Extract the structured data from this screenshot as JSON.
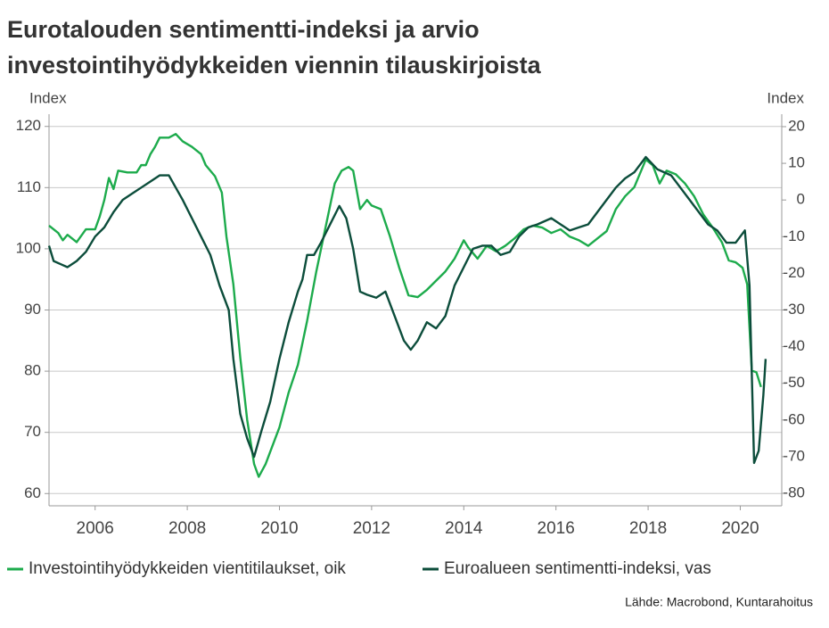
{
  "chart_data": {
    "type": "line",
    "title": [
      "Eurotalouden sentimentti-indeksi ja arvio",
      "investointihyödykkeiden viennin tilauskirjoista"
    ],
    "ylabel": "Index",
    "y2label": "Index",
    "source": "Lähde: Macrobond, Kuntarahoitus",
    "xlim": [
      2005,
      2020.9
    ],
    "xticks": [
      2006,
      2008,
      2010,
      2012,
      2014,
      2016,
      2018,
      2020
    ],
    "ylim": [
      58,
      122
    ],
    "yticks": [
      60,
      70,
      80,
      90,
      100,
      110,
      120
    ],
    "y2lim": [
      -83.4,
      23.4
    ],
    "y2ticks": [
      -80,
      -70,
      -60,
      -50,
      -40,
      -30,
      -20,
      -10,
      0,
      10,
      20
    ],
    "grid": true,
    "legend": "bottom",
    "series": [
      {
        "name": "Investointihyödykkeiden vientitilaukset, oik",
        "color": "#1dab4c",
        "axis": "y2",
        "x": [
          2005.0,
          2005.2,
          2005.3,
          2005.4,
          2005.6,
          2005.8,
          2006.0,
          2006.1,
          2006.2,
          2006.3,
          2006.4,
          2006.5,
          2006.7,
          2006.9,
          2007.0,
          2007.1,
          2007.2,
          2007.3,
          2007.4,
          2007.6,
          2007.75,
          2007.9,
          2008.1,
          2008.3,
          2008.4,
          2008.6,
          2008.75,
          2008.85,
          2009.0,
          2009.15,
          2009.3,
          2009.45,
          2009.55,
          2009.7,
          2009.85,
          2010.0,
          2010.2,
          2010.4,
          2010.6,
          2010.8,
          2011.0,
          2011.2,
          2011.35,
          2011.5,
          2011.6,
          2011.75,
          2011.9,
          2012.0,
          2012.2,
          2012.4,
          2012.6,
          2012.8,
          2013.0,
          2013.2,
          2013.4,
          2013.6,
          2013.8,
          2014.0,
          2014.1,
          2014.3,
          2014.5,
          2014.7,
          2014.9,
          2015.1,
          2015.3,
          2015.5,
          2015.7,
          2015.9,
          2016.1,
          2016.3,
          2016.5,
          2016.7,
          2016.9,
          2017.1,
          2017.3,
          2017.5,
          2017.7,
          2017.95,
          2018.1,
          2018.25,
          2018.4,
          2018.6,
          2018.8,
          2019.0,
          2019.2,
          2019.4,
          2019.6,
          2019.75,
          2019.9,
          2020.05,
          2020.15,
          2020.25,
          2020.35,
          2020.45
        ],
        "values": [
          -7,
          -9,
          -11,
          -9.5,
          -11.5,
          -8,
          -8,
          -4.5,
          0,
          6,
          3,
          8,
          7.5,
          7.5,
          9.5,
          9.5,
          12.5,
          14.5,
          17,
          17,
          18,
          16,
          14.5,
          12.5,
          9.5,
          6.5,
          2,
          -10,
          -23,
          -43,
          -60,
          -72,
          -75.5,
          -72,
          -67,
          -62,
          -52.5,
          -45,
          -33,
          -19.5,
          -7.5,
          4.5,
          8,
          9,
          8,
          -2.5,
          0,
          -1.5,
          -2.5,
          -10,
          -18.5,
          -26,
          -26.5,
          -24.5,
          -22,
          -19.5,
          -16,
          -11,
          -13,
          -16,
          -12.5,
          -14,
          -12.5,
          -10.5,
          -8,
          -7,
          -7.5,
          -9,
          -8,
          -10,
          -11,
          -12.5,
          -10.5,
          -8.5,
          -2.5,
          1,
          3.5,
          11,
          9.5,
          4.5,
          8,
          7,
          4.5,
          1,
          -4,
          -7.5,
          -11.5,
          -16.5,
          -17,
          -18.5,
          -23,
          -46.5,
          -47,
          -51
        ]
      },
      {
        "name": "Euroalueen sentimentti-indeksi, vas",
        "color": "#0c4d3b",
        "axis": "y",
        "x": [
          2005.0,
          2005.1,
          2005.25,
          2005.4,
          2005.6,
          2005.8,
          2006.0,
          2006.2,
          2006.4,
          2006.6,
          2006.8,
          2007.0,
          2007.2,
          2007.4,
          2007.6,
          2007.75,
          2007.9,
          2008.1,
          2008.3,
          2008.5,
          2008.7,
          2008.9,
          2009.0,
          2009.15,
          2009.3,
          2009.45,
          2009.6,
          2009.8,
          2010.0,
          2010.2,
          2010.4,
          2010.5,
          2010.6,
          2010.75,
          2010.9,
          2011.1,
          2011.3,
          2011.45,
          2011.6,
          2011.75,
          2011.9,
          2012.1,
          2012.3,
          2012.5,
          2012.7,
          2012.85,
          2013.0,
          2013.2,
          2013.4,
          2013.6,
          2013.8,
          2014.0,
          2014.2,
          2014.4,
          2014.6,
          2014.8,
          2015.0,
          2015.2,
          2015.4,
          2015.6,
          2015.9,
          2016.1,
          2016.3,
          2016.5,
          2016.7,
          2016.9,
          2017.1,
          2017.3,
          2017.5,
          2017.7,
          2017.95,
          2018.2,
          2018.5,
          2018.7,
          2018.9,
          2019.1,
          2019.3,
          2019.5,
          2019.7,
          2019.9,
          2020.0,
          2020.1,
          2020.2,
          2020.3,
          2020.4,
          2020.5,
          2020.55
        ],
        "values": [
          100.5,
          98,
          97.5,
          97,
          98,
          99.5,
          102,
          103.5,
          106,
          108,
          109,
          110,
          111,
          112,
          112,
          110,
          108,
          105,
          102,
          99,
          94,
          90,
          82,
          73,
          69,
          66,
          70,
          75,
          82,
          88,
          93,
          95,
          99,
          99,
          101,
          104,
          107,
          105,
          100,
          93,
          92.5,
          92,
          93,
          89,
          85,
          83.5,
          85,
          88,
          87,
          89,
          94,
          97,
          100,
          100.5,
          100.5,
          99,
          99.5,
          102,
          103.5,
          104,
          105,
          104,
          103,
          103.5,
          104,
          106,
          108,
          110,
          111.5,
          112.5,
          115,
          113,
          112,
          110,
          108,
          106,
          104,
          103,
          101,
          101,
          102,
          103,
          94,
          65,
          67,
          76,
          82
        ]
      }
    ]
  }
}
